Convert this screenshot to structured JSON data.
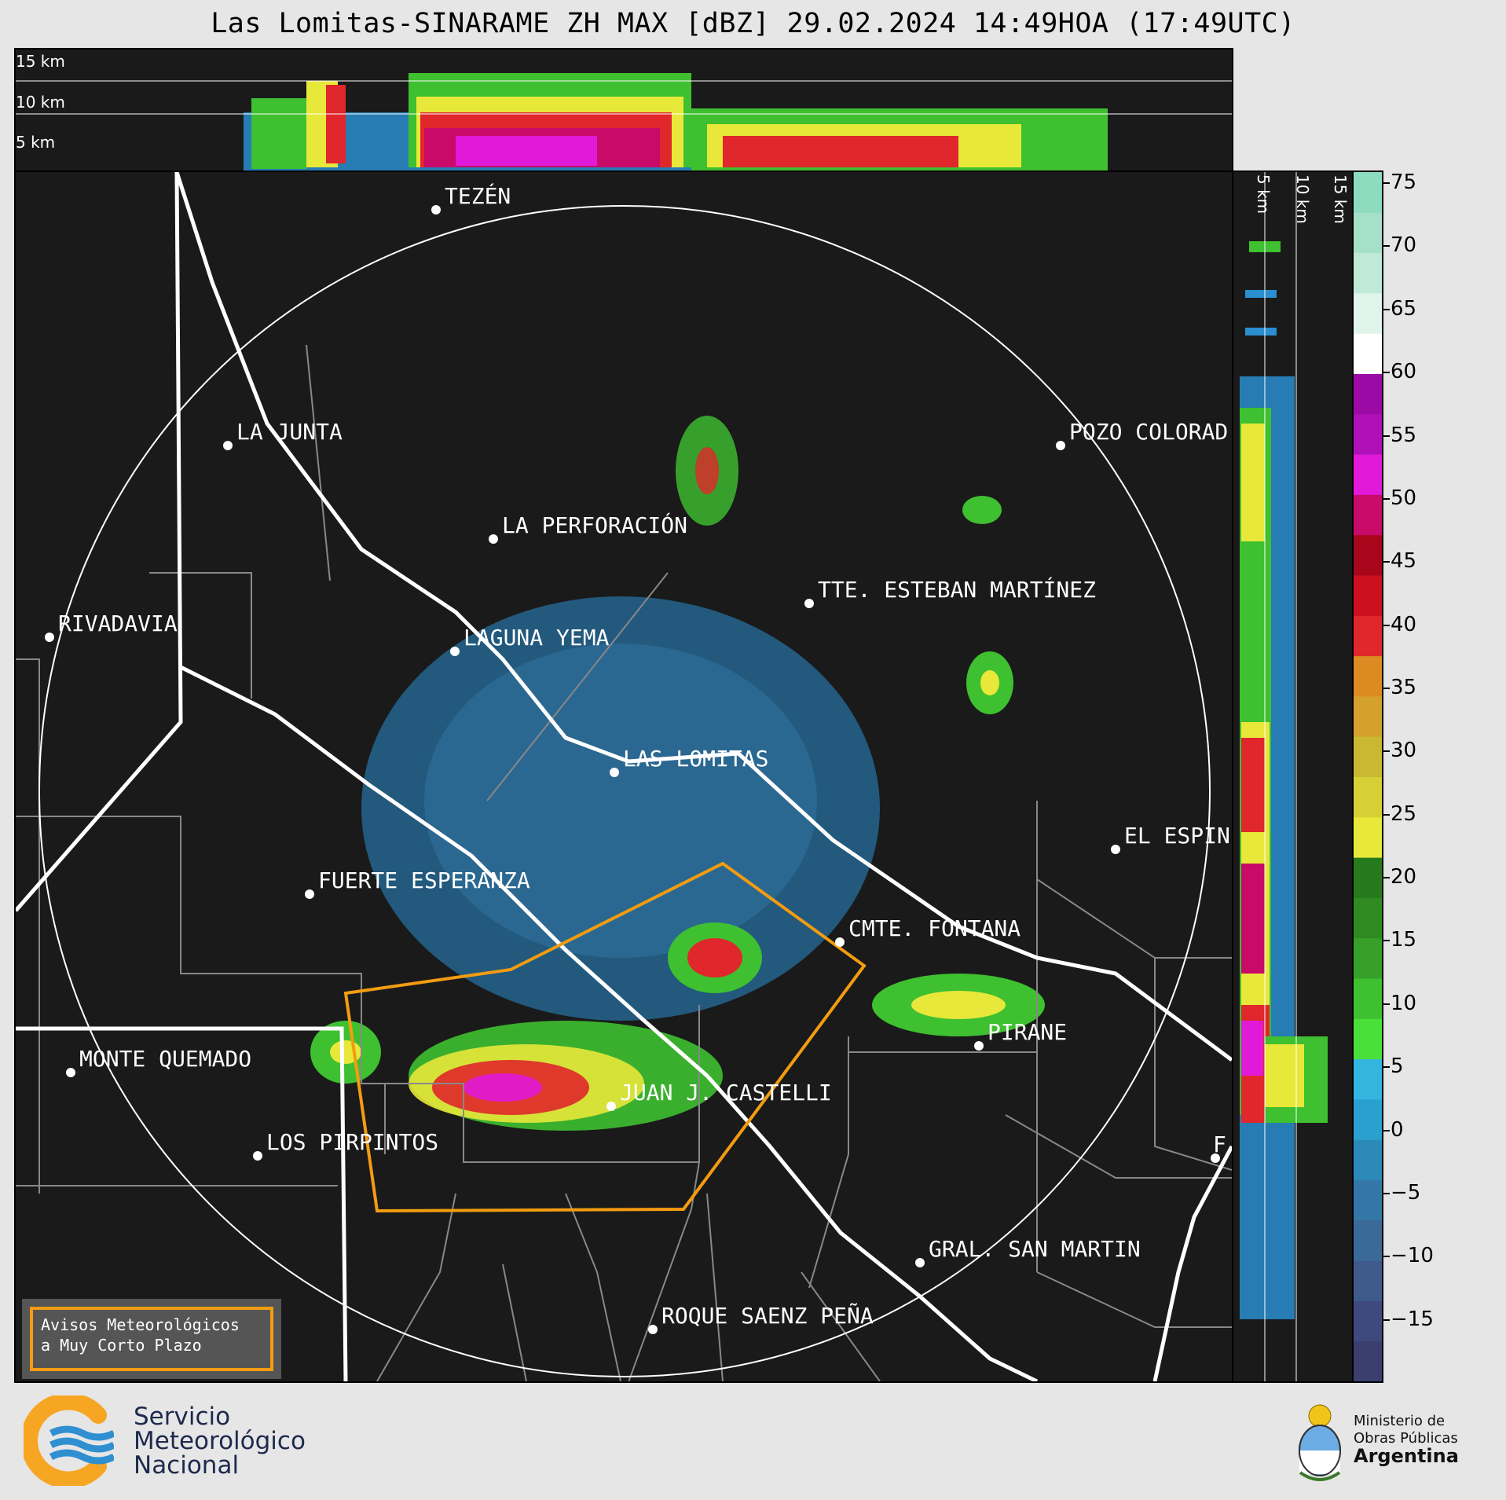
{
  "title": "Las Lomitas-SINARAME ZH MAX [dBZ] 29.02.2024 14:49HOA (17:49UTC)",
  "top_panel": {
    "altitude_labels": [
      "15 km",
      "10 km",
      "5 km"
    ]
  },
  "side_panel": {
    "altitude_labels": [
      "5 km",
      "10 km",
      "15 km"
    ]
  },
  "colorbar": {
    "unit": "dBZ",
    "ticks": [
      "75",
      "70",
      "65",
      "60",
      "55",
      "50",
      "45",
      "40",
      "35",
      "30",
      "25",
      "20",
      "15",
      "10",
      "5",
      "0",
      "−5",
      "−10",
      "−15"
    ],
    "range": [
      -20,
      76
    ],
    "colors": [
      "#3a3f6e",
      "#3e4a7d",
      "#3f5a8c",
      "#3b6a98",
      "#3477a6",
      "#2b8ab8",
      "#2aa0d0",
      "#33b5e0",
      "#4ae03a",
      "#3ec030",
      "#36a028",
      "#2f8a22",
      "#267a1c",
      "#e8e83a",
      "#d6cf36",
      "#c8b832",
      "#d4a12c",
      "#dc8a22",
      "#e0272b",
      "#cc1020",
      "#a8061a",
      "#c80a68",
      "#e01ad8",
      "#b010b8",
      "#9c0aa6",
      "#ffffff",
      "#e0f4ea",
      "#c0ead8",
      "#a6e0c8",
      "#8edcc0"
    ]
  },
  "map": {
    "cities": [
      {
        "name": "TEZÉN"
      },
      {
        "name": "LA JUNTA"
      },
      {
        "name": "POZO COLORAD"
      },
      {
        "name": "LA PERFORACIÓN"
      },
      {
        "name": "TTE. ESTEBAN MARTÍNEZ"
      },
      {
        "name": "RIVADAVIA"
      },
      {
        "name": "LAGUNA YEMA"
      },
      {
        "name": "LAS LOMITAS"
      },
      {
        "name": "EL ESPIN"
      },
      {
        "name": "FUERTE ESPERANZA"
      },
      {
        "name": "CMTE. FONTANA"
      },
      {
        "name": "PIRANE"
      },
      {
        "name": "MONTE QUEMADO"
      },
      {
        "name": "JUAN J. CASTELLI"
      },
      {
        "name": "LOS PIRPINTOS"
      },
      {
        "name": "GRAL. SAN MARTIN"
      },
      {
        "name": "ROQUE SAENZ PEÑA"
      },
      {
        "name": "F"
      }
    ]
  },
  "aviso": {
    "line1": "Avisos Meteorológicos",
    "line2": "a Muy Corto Plazo"
  },
  "logos": {
    "smn_line1": "Servicio",
    "smn_line2": "Meteorológico",
    "smn_line3": "Nacional",
    "mop_line1": "Ministerio de",
    "mop_line2": "Obras Públicas",
    "mop_line3": "Argentina"
  }
}
